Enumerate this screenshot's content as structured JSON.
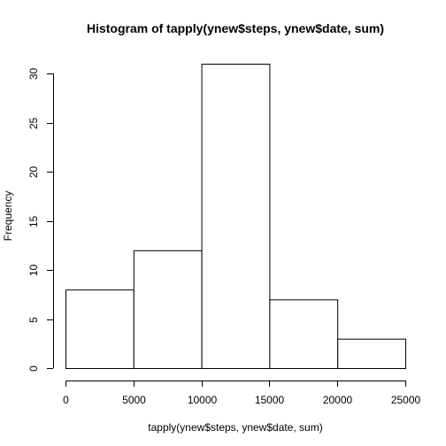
{
  "chart_data": {
    "type": "bar",
    "title": "Histogram of tapply(ynew$steps, ynew$date, sum)",
    "xlabel": "tapply(ynew$steps, ynew$date, sum)",
    "ylabel": "Frequency",
    "bins": [
      {
        "start": 0,
        "end": 5000,
        "value": 8
      },
      {
        "start": 5000,
        "end": 10000,
        "value": 12
      },
      {
        "start": 10000,
        "end": 15000,
        "value": 31
      },
      {
        "start": 15000,
        "end": 20000,
        "value": 7
      },
      {
        "start": 20000,
        "end": 25000,
        "value": 3
      }
    ],
    "xlim": [
      0,
      25000
    ],
    "ylim": [
      0,
      31
    ],
    "xticks": [
      0,
      5000,
      10000,
      15000,
      20000,
      25000
    ],
    "yticks": [
      0,
      5,
      10,
      15,
      20,
      25,
      30
    ],
    "grid": false,
    "legend": "none",
    "colors": {
      "bar_fill": "#ffffff",
      "bar_stroke": "#000000"
    }
  }
}
